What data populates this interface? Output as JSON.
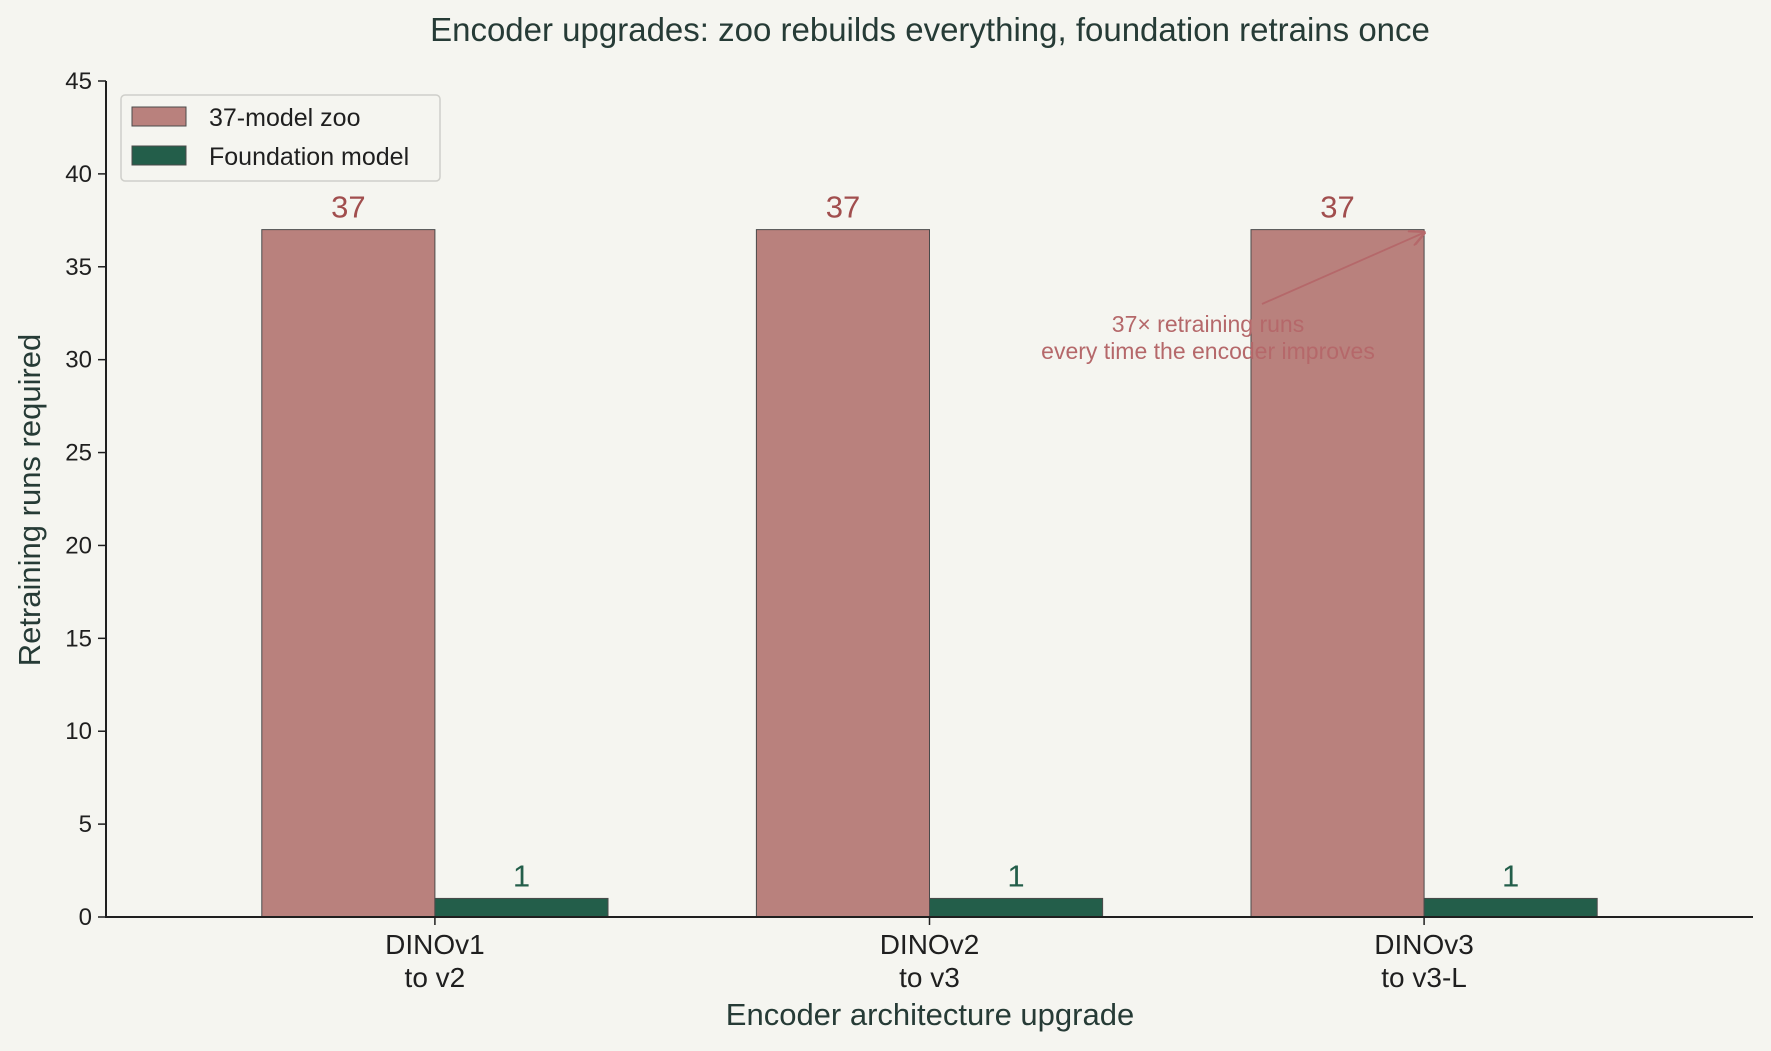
{
  "chart_data": {
    "type": "bar",
    "title": "Encoder upgrades: zoo rebuilds everything, foundation retrains once",
    "xlabel": "Encoder architecture upgrade",
    "ylabel": "Retraining runs required",
    "categories": [
      [
        "DINOv1",
        "to v2"
      ],
      [
        "DINOv2",
        "to v3"
      ],
      [
        "DINOv3",
        "to v3-L"
      ]
    ],
    "series": [
      {
        "name": "37-model zoo",
        "values": [
          37,
          37,
          37
        ],
        "color": "#b9817d",
        "label_color": "#a14e4e"
      },
      {
        "name": "Foundation model",
        "values": [
          1,
          1,
          1
        ],
        "color": "#235e4a",
        "label_color": "#235e4a"
      }
    ],
    "ylim": [
      0,
      45
    ],
    "yticks": [
      0,
      5,
      10,
      15,
      20,
      25,
      30,
      35,
      40,
      45
    ],
    "legend": "top-left",
    "grid": false,
    "annotation": {
      "lines": [
        "37× retraining runs",
        "every time the encoder improves"
      ],
      "target_category": 2,
      "target_value": 37,
      "color": "#b5686a"
    }
  },
  "colors": {
    "background": "#f5f5f0",
    "axis": "#1f1f1f",
    "text": "#263b36"
  }
}
